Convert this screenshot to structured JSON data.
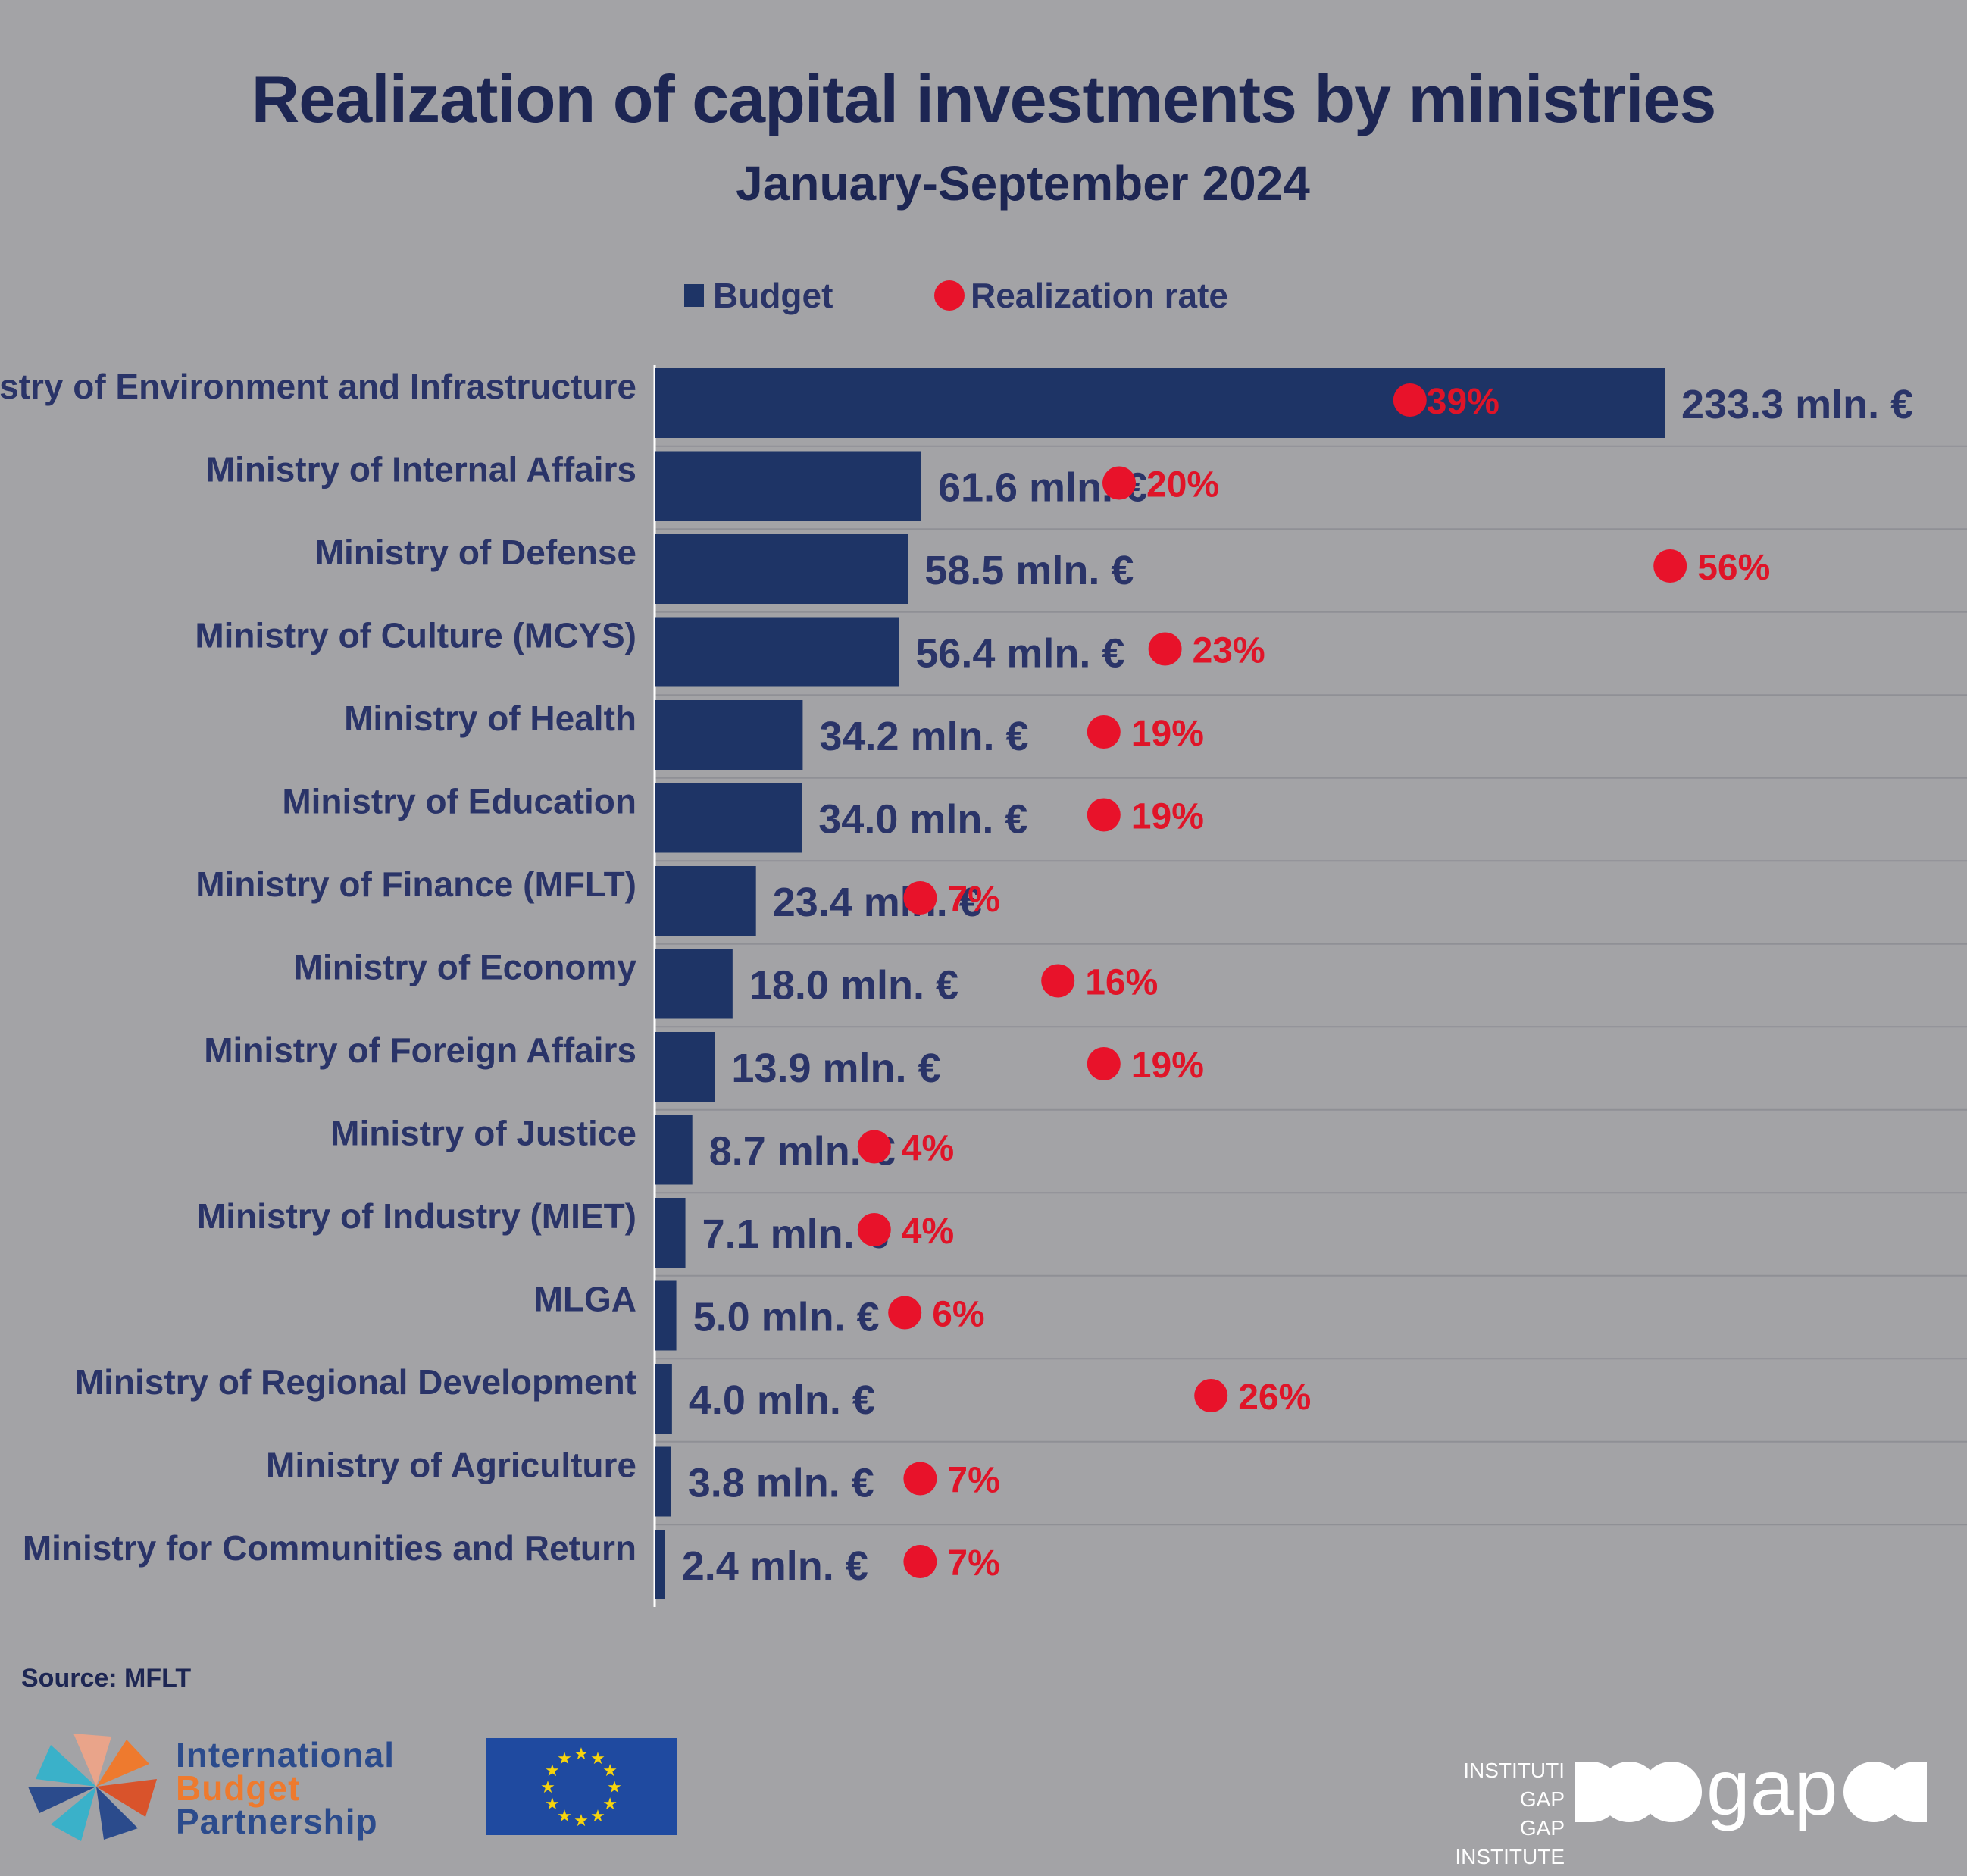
{
  "title": "Realization of capital investments by ministries",
  "subtitle": "January-September 2024",
  "legend": {
    "budget": "Budget",
    "rate": "Realization rate"
  },
  "colors": {
    "bar": "#1e3466",
    "dot": "#e8122a",
    "rate_text": "#e01428",
    "label_text": "#2a3468",
    "background": "#a3a3a6"
  },
  "chart_data": {
    "type": "bar",
    "orientation": "horizontal",
    "categories": [
      "Ministry of Environment and Infrastructure",
      "Ministry of Internal Affairs",
      "Ministry of Defense",
      "Ministry of Culture (MCYS)",
      "Ministry of Health",
      "Ministry of Education",
      "Ministry of Finance (MFLT)",
      "Ministry of Economy",
      "Ministry of Foreign Affairs",
      "Ministry of Justice",
      "Ministry of Industry (MIET)",
      "MLGA",
      "Ministry of Regional Development",
      "Ministry of Agriculture",
      "Ministry for Communities and Return"
    ],
    "series": [
      {
        "name": "Budget",
        "unit": "mln. €",
        "values": [
          233.3,
          61.6,
          58.5,
          56.4,
          34.2,
          34.0,
          23.4,
          18.0,
          13.9,
          8.7,
          7.1,
          5.0,
          4.0,
          3.8,
          2.4
        ],
        "labels": [
          "233.3 mln. €",
          "61.6 mln. €",
          "58.5 mln. €",
          "56.4 mln. €",
          "34.2 mln. €",
          "34.0 mln. €",
          "23.4 mln. €",
          "18.0 mln. €",
          "13.9 mln. €",
          "8.7 mln. €",
          "7.1 mln. €",
          "5.0 mln. €",
          "4.0 mln. €",
          "3.8 mln. €",
          "2.4 mln. €"
        ]
      },
      {
        "name": "Realization rate",
        "unit": "%",
        "values": [
          39,
          20,
          56,
          23,
          19,
          19,
          7,
          16,
          19,
          4,
          4,
          6,
          26,
          7,
          7
        ],
        "labels": [
          "39%",
          "20%",
          "56%",
          "23%",
          "19%",
          "19%",
          "7%",
          "16%",
          "19%",
          "4%",
          "4%",
          "6%",
          "26%",
          "7%",
          "7%"
        ]
      }
    ],
    "legend_position": "top-center",
    "grid": "horizontal separators"
  },
  "source": "Source: MFLT",
  "logos": {
    "ibp": [
      "International",
      "Budget",
      "Partnership"
    ],
    "gap": [
      "INSTITUTI GAP",
      "GAP INSTITUTE"
    ],
    "gap_wordmark": "gap"
  }
}
